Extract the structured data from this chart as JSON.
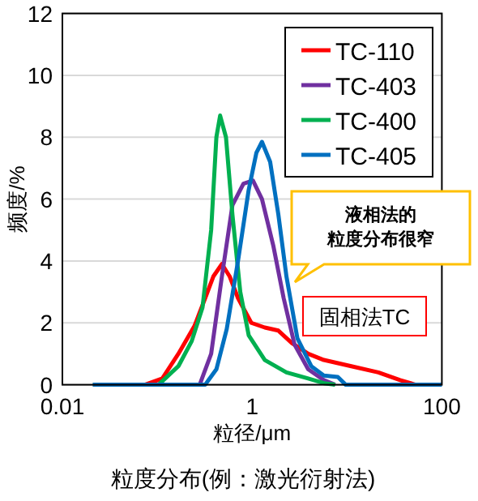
{
  "chart_data": {
    "type": "line",
    "xlabel": "粒径/μm",
    "ylabel": "频度/%",
    "log": "x",
    "xlim": [
      0.01,
      100
    ],
    "xticks": [
      0.01,
      1,
      100
    ],
    "ylim": [
      0,
      12
    ],
    "yticks": [
      0,
      2,
      4,
      6,
      8,
      10,
      12
    ],
    "grid": "y",
    "legend": "top right",
    "line_style": "solid",
    "series": [
      {
        "name": "TC-110",
        "color": "#ff0000",
        "x": [
          0.074,
          0.113,
          0.167,
          0.247,
          0.32,
          0.39,
          0.48,
          0.58,
          0.71,
          0.98,
          1.36,
          1.89,
          2.62,
          3.9,
          5.7,
          11.1,
          21.4,
          36.3,
          53
        ],
        "values": [
          0,
          0.2,
          1,
          1.9,
          2.8,
          3.5,
          3.9,
          3.5,
          2.8,
          2.0,
          1.85,
          1.75,
          1.35,
          1.0,
          0.8,
          0.6,
          0.4,
          0.15,
          0
        ]
      },
      {
        "name": "TC-403",
        "color": "#7030a0",
        "x": [
          0.021,
          0.28,
          0.37,
          0.48,
          0.62,
          0.81,
          1.02,
          1.27,
          1.67,
          2.15,
          2.8,
          3.9,
          5.7,
          7.5
        ],
        "values": [
          0,
          0,
          1,
          3.5,
          5.8,
          6.5,
          6.6,
          6,
          4.5,
          2.8,
          1.3,
          0.5,
          0.15,
          0
        ]
      },
      {
        "name": "TC-400",
        "color": "#00b050",
        "x": [
          0.021,
          0.103,
          0.167,
          0.23,
          0.3,
          0.37,
          0.42,
          0.46,
          0.53,
          0.62,
          0.75,
          0.92,
          1.36,
          2.3,
          3.9,
          5.7,
          7.5
        ],
        "values": [
          0,
          0,
          0.6,
          1.4,
          2.5,
          5,
          8,
          8.7,
          8,
          5.5,
          3,
          1.6,
          0.8,
          0.4,
          0.2,
          0.05,
          0
        ]
      },
      {
        "name": "TC-405",
        "color": "#0070c0",
        "x": [
          0.021,
          0.32,
          0.42,
          0.54,
          0.71,
          0.92,
          1.11,
          1.27,
          1.55,
          1.89,
          2.3,
          3.0,
          4.2,
          5.7,
          8.0,
          9.7,
          100
        ],
        "values": [
          0,
          0,
          0.5,
          1.8,
          4,
          6.3,
          7.5,
          7.85,
          7.2,
          5.5,
          3.5,
          1.5,
          0.6,
          0.3,
          0.25,
          0,
          0
        ]
      }
    ],
    "annotations": [
      "液相法的",
      "粒度分布很窄",
      "固相法TC",
      "粒度分布(例：激光衍射法)"
    ]
  }
}
